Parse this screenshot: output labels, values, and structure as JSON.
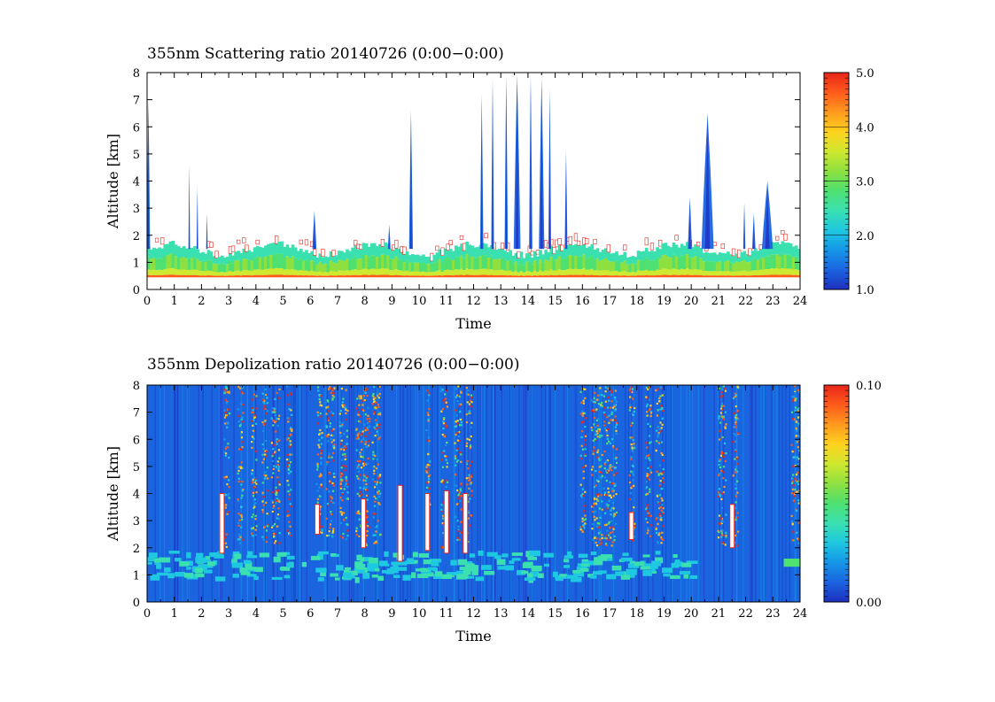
{
  "chart_data": [
    {
      "type": "heatmap",
      "title": "355nm Scattering ratio  20140726 (0:00−0:00)",
      "xlabel": "Time",
      "ylabel": "Altitude [km]",
      "xlim": [
        0,
        24
      ],
      "ylim": [
        0,
        8
      ],
      "xticks": [
        "0",
        "1",
        "2",
        "3",
        "4",
        "5",
        "6",
        "7",
        "8",
        "9",
        "10",
        "11",
        "12",
        "13",
        "14",
        "15",
        "16",
        "17",
        "18",
        "19",
        "20",
        "21",
        "22",
        "23",
        "24"
      ],
      "yticks": [
        "0",
        "1",
        "2",
        "3",
        "4",
        "5",
        "6",
        "7",
        "8"
      ],
      "colorbar": {
        "min": 1.0,
        "max": 5.0,
        "ticks": [
          "1.0",
          "2.0",
          "3.0",
          "4.0",
          "5.0"
        ]
      },
      "background_color": "#ffffff",
      "boundary_layer": {
        "top_km": 1.6,
        "bottom_km": 0.45
      },
      "cloud_plumes": [
        {
          "t": 0.05,
          "top": 7.0,
          "w": 0.12
        },
        {
          "t": 1.55,
          "top": 4.6,
          "w": 0.06
        },
        {
          "t": 1.85,
          "top": 3.8,
          "w": 0.06
        },
        {
          "t": 2.2,
          "top": 2.8,
          "w": 0.06
        },
        {
          "t": 6.15,
          "top": 2.9,
          "w": 0.15
        },
        {
          "t": 8.9,
          "top": 2.4,
          "w": 0.1
        },
        {
          "t": 9.7,
          "top": 6.6,
          "w": 0.14
        },
        {
          "t": 12.3,
          "top": 7.2,
          "w": 0.12
        },
        {
          "t": 12.7,
          "top": 7.8,
          "w": 0.1
        },
        {
          "t": 13.2,
          "top": 7.9,
          "w": 0.12
        },
        {
          "t": 13.6,
          "top": 7.9,
          "w": 0.25
        },
        {
          "t": 14.1,
          "top": 7.9,
          "w": 0.12
        },
        {
          "t": 14.5,
          "top": 7.8,
          "w": 0.2
        },
        {
          "t": 14.8,
          "top": 7.4,
          "w": 0.1
        },
        {
          "t": 15.4,
          "top": 5.1,
          "w": 0.1
        },
        {
          "t": 19.95,
          "top": 3.4,
          "w": 0.15
        },
        {
          "t": 20.6,
          "top": 6.5,
          "w": 0.45
        },
        {
          "t": 21.95,
          "top": 3.2,
          "w": 0.08
        },
        {
          "t": 22.3,
          "top": 2.8,
          "w": 0.12
        },
        {
          "t": 22.8,
          "top": 4.0,
          "w": 0.4
        }
      ]
    },
    {
      "type": "heatmap",
      "title": "355nm Depolization ratio  20140726 (0:00−0:00)",
      "xlabel": "Time",
      "ylabel": "Altitude [km]",
      "xlim": [
        0,
        24
      ],
      "ylim": [
        0,
        8
      ],
      "xticks": [
        "0",
        "1",
        "2",
        "3",
        "4",
        "5",
        "6",
        "7",
        "8",
        "9",
        "10",
        "11",
        "12",
        "13",
        "14",
        "15",
        "16",
        "17",
        "18",
        "19",
        "20",
        "21",
        "22",
        "23",
        "24"
      ],
      "yticks": [
        "0",
        "1",
        "2",
        "3",
        "4",
        "5",
        "6",
        "7",
        "8"
      ],
      "colorbar": {
        "min": 0.0,
        "max": 0.1,
        "ticks": [
          "0.00",
          "0.10"
        ]
      },
      "background_color": "#1a64e0",
      "noisy_columns": [
        {
          "t": 2.9,
          "bottom": 2.0,
          "w": 0.2
        },
        {
          "t": 3.4,
          "bottom": 2.0,
          "w": 0.2
        },
        {
          "t": 3.9,
          "bottom": 2.0,
          "w": 0.2
        },
        {
          "t": 4.3,
          "bottom": 2.2,
          "w": 0.2
        },
        {
          "t": 4.7,
          "bottom": 2.2,
          "w": 0.3
        },
        {
          "t": 5.2,
          "bottom": 2.3,
          "w": 0.2
        },
        {
          "t": 6.3,
          "bottom": 2.4,
          "w": 0.2
        },
        {
          "t": 6.7,
          "bottom": 2.3,
          "w": 0.3
        },
        {
          "t": 7.2,
          "bottom": 2.2,
          "w": 0.3
        },
        {
          "t": 7.9,
          "bottom": 2.1,
          "w": 0.5
        },
        {
          "t": 8.4,
          "bottom": 2.2,
          "w": 0.3
        },
        {
          "t": 10.3,
          "bottom": 2.2,
          "w": 0.15
        },
        {
          "t": 10.9,
          "bottom": 2.0,
          "w": 0.25
        },
        {
          "t": 11.4,
          "bottom": 2.0,
          "w": 0.25
        },
        {
          "t": 11.8,
          "bottom": 2.1,
          "w": 0.2
        },
        {
          "t": 16.0,
          "bottom": 2.2,
          "w": 0.2
        },
        {
          "t": 16.5,
          "bottom": 2.1,
          "w": 0.4
        },
        {
          "t": 17.0,
          "bottom": 2.1,
          "w": 0.5
        },
        {
          "t": 17.8,
          "bottom": 2.3,
          "w": 0.2
        },
        {
          "t": 18.4,
          "bottom": 2.2,
          "w": 0.2
        },
        {
          "t": 18.8,
          "bottom": 2.2,
          "w": 0.3
        },
        {
          "t": 21.1,
          "bottom": 2.1,
          "w": 0.3
        },
        {
          "t": 21.6,
          "bottom": 2.1,
          "w": 0.2
        },
        {
          "t": 23.8,
          "bottom": 2.2,
          "w": 0.3
        }
      ],
      "saturated_columns": [
        {
          "t": 2.75,
          "bottom": 1.8,
          "top": 4.0
        },
        {
          "t": 6.25,
          "bottom": 2.5,
          "top": 3.6
        },
        {
          "t": 7.95,
          "bottom": 2.0,
          "top": 3.8
        },
        {
          "t": 9.3,
          "bottom": 1.5,
          "top": 4.3
        },
        {
          "t": 10.3,
          "bottom": 1.9,
          "top": 4.0
        },
        {
          "t": 11.0,
          "bottom": 1.8,
          "top": 4.1
        },
        {
          "t": 11.7,
          "bottom": 1.8,
          "top": 4.0
        },
        {
          "t": 17.8,
          "bottom": 2.3,
          "top": 3.3
        },
        {
          "t": 21.5,
          "bottom": 2.0,
          "top": 3.6
        }
      ],
      "aerosol_band": {
        "bottom_km": 0.9,
        "top_km": 1.9
      }
    }
  ]
}
